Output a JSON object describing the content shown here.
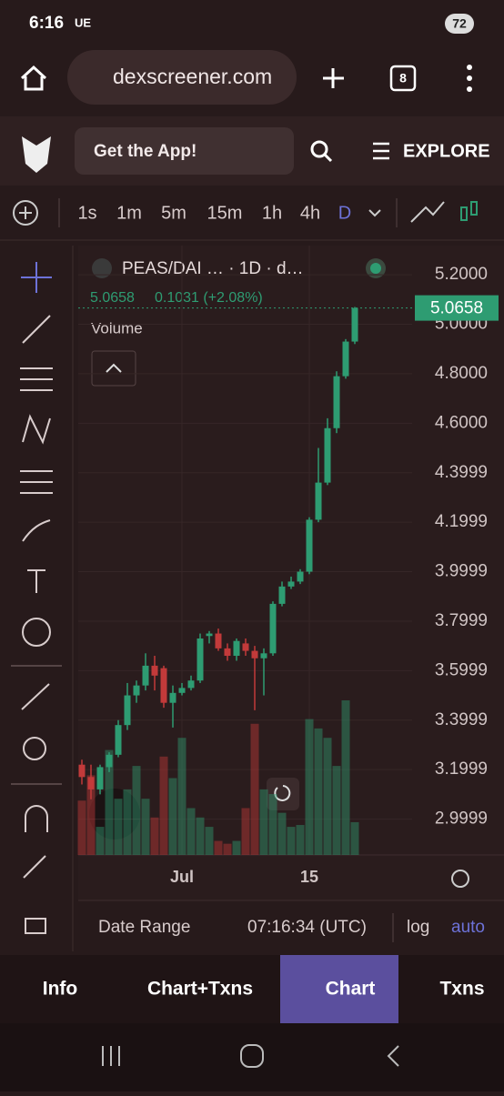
{
  "status_bar": {
    "time": "6:16",
    "carrier": "UE",
    "battery": "72"
  },
  "browser": {
    "url": "dexscreener.com",
    "tabs": "8"
  },
  "site_header": {
    "app_button": "Get the App!",
    "explore": "EXPLORE"
  },
  "timeframes": [
    "1s",
    "1m",
    "5m",
    "15m",
    "1h",
    "4h",
    "D"
  ],
  "active_timeframe": "D",
  "chart_data": {
    "type": "candlestick",
    "title": "PEAS/DAI … · 1D · d…",
    "summary": {
      "price": "5.0658",
      "change": "0.1031 (+2.08%)"
    },
    "volume_label": "Volume",
    "last_price": 5.0658,
    "categories": [
      null,
      null,
      null,
      null,
      null,
      null,
      null,
      null,
      null,
      null,
      null,
      "Jul",
      null,
      null,
      null,
      null,
      null,
      null,
      null,
      null,
      null,
      null,
      null,
      null,
      null,
      "15",
      null,
      null,
      null,
      null,
      null
    ],
    "open": [
      3.22,
      3.17,
      3.12,
      3.21,
      3.26,
      3.38,
      3.5,
      3.54,
      3.62,
      3.61,
      3.47,
      3.51,
      3.53,
      3.56,
      3.74,
      3.75,
      3.69,
      3.66,
      3.71,
      3.68,
      3.65,
      3.67,
      3.87,
      3.94,
      3.96,
      4.0,
      4.21,
      4.36,
      4.58,
      4.79,
      4.93
    ],
    "high": [
      3.24,
      3.22,
      3.22,
      3.27,
      3.4,
      3.55,
      3.56,
      3.67,
      3.66,
      3.62,
      3.54,
      3.55,
      3.58,
      3.75,
      3.76,
      3.77,
      3.71,
      3.73,
      3.73,
      3.7,
      3.69,
      3.88,
      3.96,
      3.98,
      4.01,
      4.22,
      4.5,
      4.62,
      4.81,
      4.94,
      5.07
    ],
    "low": [
      3.14,
      3.08,
      3.1,
      3.19,
      3.25,
      3.36,
      3.47,
      3.52,
      3.52,
      3.45,
      3.37,
      3.5,
      3.52,
      3.55,
      3.71,
      3.68,
      3.64,
      3.64,
      3.66,
      3.44,
      3.5,
      3.66,
      3.86,
      3.93,
      3.95,
      3.99,
      4.2,
      4.35,
      4.56,
      4.78,
      4.92
    ],
    "close": [
      3.17,
      3.12,
      3.21,
      3.26,
      3.38,
      3.5,
      3.54,
      3.62,
      3.58,
      3.47,
      3.51,
      3.53,
      3.56,
      3.73,
      3.75,
      3.69,
      3.66,
      3.72,
      3.68,
      3.65,
      3.67,
      3.87,
      3.94,
      3.96,
      4.0,
      4.21,
      4.36,
      4.58,
      4.79,
      4.93,
      5.0658
    ],
    "volume": [
      58,
      85,
      30,
      112,
      60,
      70,
      95,
      60,
      40,
      105,
      82,
      125,
      50,
      40,
      30,
      15,
      12,
      15,
      50,
      140,
      70,
      65,
      45,
      30,
      32,
      145,
      135,
      125,
      95,
      165,
      35
    ],
    "up_color": "#2e9c72",
    "down_color": "#c23a3a",
    "ylim": [
      2.855,
      5.318
    ],
    "yticks": [
      {
        "value": 5.2,
        "label": "5.2000"
      },
      {
        "value": 5.0,
        "label": "5.0000"
      },
      {
        "value": 4.8,
        "label": "4.8000"
      },
      {
        "value": 4.6,
        "label": "4.6000"
      },
      4.3999,
      4.1999,
      3.9999,
      3.7999,
      3.5999,
      3.3999,
      3.1999,
      2.9999
    ],
    "grid": true
  },
  "footer": {
    "date_range": "Date Range",
    "time": "07:16:34 (UTC)",
    "log": "log",
    "auto": "auto"
  },
  "tabs": [
    "Info",
    "Chart+Txns",
    "Chart",
    "Txns"
  ],
  "active_tab": "Chart"
}
